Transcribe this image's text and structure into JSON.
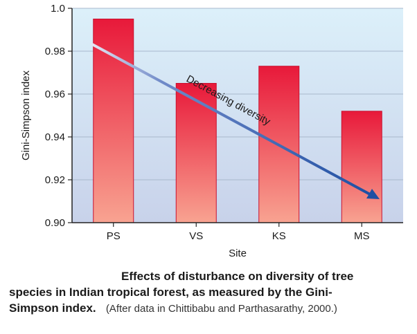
{
  "chart_data": {
    "type": "bar",
    "categories": [
      "PS",
      "VS",
      "KS",
      "MS"
    ],
    "values": [
      0.995,
      0.965,
      0.973,
      0.952
    ],
    "xlabel": "Site",
    "ylabel": "Gini-Simpson index",
    "ylim": [
      0.9,
      1.0
    ],
    "yticks": [
      "0.90",
      "0.92",
      "0.94",
      "0.96",
      "0.98",
      "1.0"
    ],
    "grid": true,
    "annotation": "Decreasing diversity",
    "colors": {
      "bar_top": "#e8193a",
      "bar_bottom": "#f7a08f",
      "plot_bg_top": "#d9eef9",
      "plot_bg_bottom": "#c9d3ea",
      "arrow": "#1f4fa3"
    }
  },
  "caption": {
    "line1": "Effects of disturbance on diversity of tree",
    "line2": "species in Indian tropical forest, as measured by the Gini-",
    "line3_bold": "Simpson index.",
    "line3_source": "(After data in Chittibabu and Parthasarathy, 2000.)"
  }
}
